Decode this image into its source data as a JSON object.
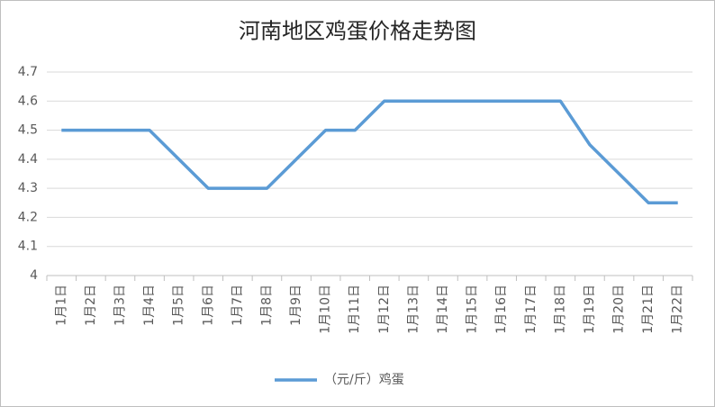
{
  "chart_data": {
    "type": "line",
    "title": "河南地区鸡蛋价格走势图",
    "categories": [
      "1月1日",
      "1月2日",
      "1月3日",
      "1月4日",
      "1月5日",
      "1月6日",
      "1月7日",
      "1月8日",
      "1月9日",
      "1月10日",
      "1月11日",
      "1月12日",
      "1月13日",
      "1月14日",
      "1月15日",
      "1月16日",
      "1月17日",
      "1月18日",
      "1月19日",
      "1月20日",
      "1月21日",
      "1月22日"
    ],
    "series": [
      {
        "name": "（元/斤）鸡蛋",
        "color": "#5b9bd5",
        "values": [
          4.5,
          4.5,
          4.5,
          4.5,
          4.4,
          4.3,
          4.3,
          4.3,
          4.4,
          4.5,
          4.5,
          4.6,
          4.6,
          4.6,
          4.6,
          4.6,
          4.6,
          4.6,
          4.45,
          4.35,
          4.25,
          4.25
        ]
      }
    ],
    "ylim": [
      4,
      4.7
    ],
    "yticks": [
      4,
      4.1,
      4.2,
      4.3,
      4.4,
      4.5,
      4.6,
      4.7
    ],
    "grid": true,
    "legend": "bottom"
  }
}
